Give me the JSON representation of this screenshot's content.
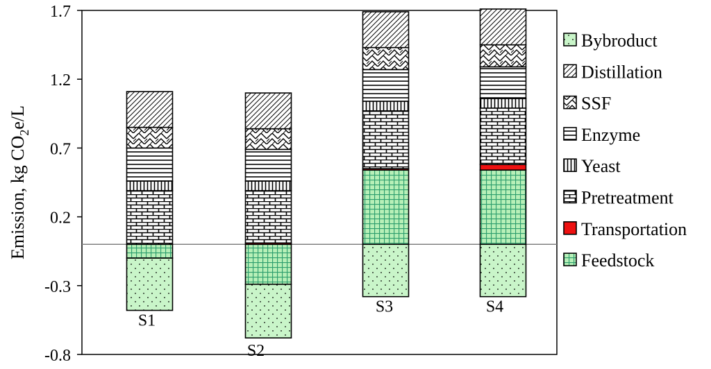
{
  "chart_data": {
    "type": "bar",
    "stacked": true,
    "ylabel": {
      "main": "Emission, kg CO",
      "sub": "2",
      "tail": "e/L"
    },
    "ylim": [
      -0.8,
      1.7
    ],
    "yticks": [
      1.7,
      1.2,
      0.7,
      0.2,
      -0.3,
      -0.8
    ],
    "ytick_labels": [
      "1.7",
      "1.2",
      "0.7",
      "0.2",
      "-0.3",
      "-0.8"
    ],
    "baseline": 0,
    "categories": [
      "S1",
      "S2",
      "S3",
      "S4"
    ],
    "legend_position": "right",
    "series": [
      {
        "name": "Feedstock",
        "pattern": "grid",
        "fill": "#b8f0b8",
        "stroke": "#2e9e6e",
        "values": [
          -0.1,
          -0.29,
          0.54,
          0.54
        ]
      },
      {
        "name": "Transportation",
        "pattern": "solid",
        "fill": "#ee1111",
        "stroke": "#000000",
        "values": [
          0.0,
          0.01,
          0.01,
          0.04
        ]
      },
      {
        "name": "Pretreatment",
        "pattern": "brick",
        "fill": "#ffffff",
        "stroke": "#000000",
        "values": [
          0.39,
          0.38,
          0.42,
          0.41
        ]
      },
      {
        "name": "Yeast",
        "pattern": "vertical",
        "fill": "#ffffff",
        "stroke": "#000000",
        "values": [
          0.07,
          0.07,
          0.07,
          0.07
        ]
      },
      {
        "name": "Enzyme",
        "pattern": "horizontal",
        "fill": "#ffffff",
        "stroke": "#000000",
        "values": [
          0.24,
          0.23,
          0.23,
          0.23
        ]
      },
      {
        "name": "SSF",
        "pattern": "zigzag",
        "fill": "#ffffff",
        "stroke": "#000000",
        "values": [
          0.15,
          0.15,
          0.16,
          0.16
        ]
      },
      {
        "name": "Distillation",
        "pattern": "diagonal",
        "fill": "#ffffff",
        "stroke": "#000000",
        "values": [
          0.26,
          0.26,
          0.26,
          0.26
        ]
      },
      {
        "name": "Bybroduct",
        "pattern": "dots",
        "fill": "#c9f5c9",
        "stroke": "#000000",
        "values": [
          -0.38,
          -0.39,
          -0.38,
          -0.38
        ]
      }
    ],
    "legend_order": [
      "Bybroduct",
      "Distillation",
      "SSF",
      "Enzyme",
      "Yeast",
      "Pretreatment",
      "Transportation",
      "Feedstock"
    ]
  }
}
